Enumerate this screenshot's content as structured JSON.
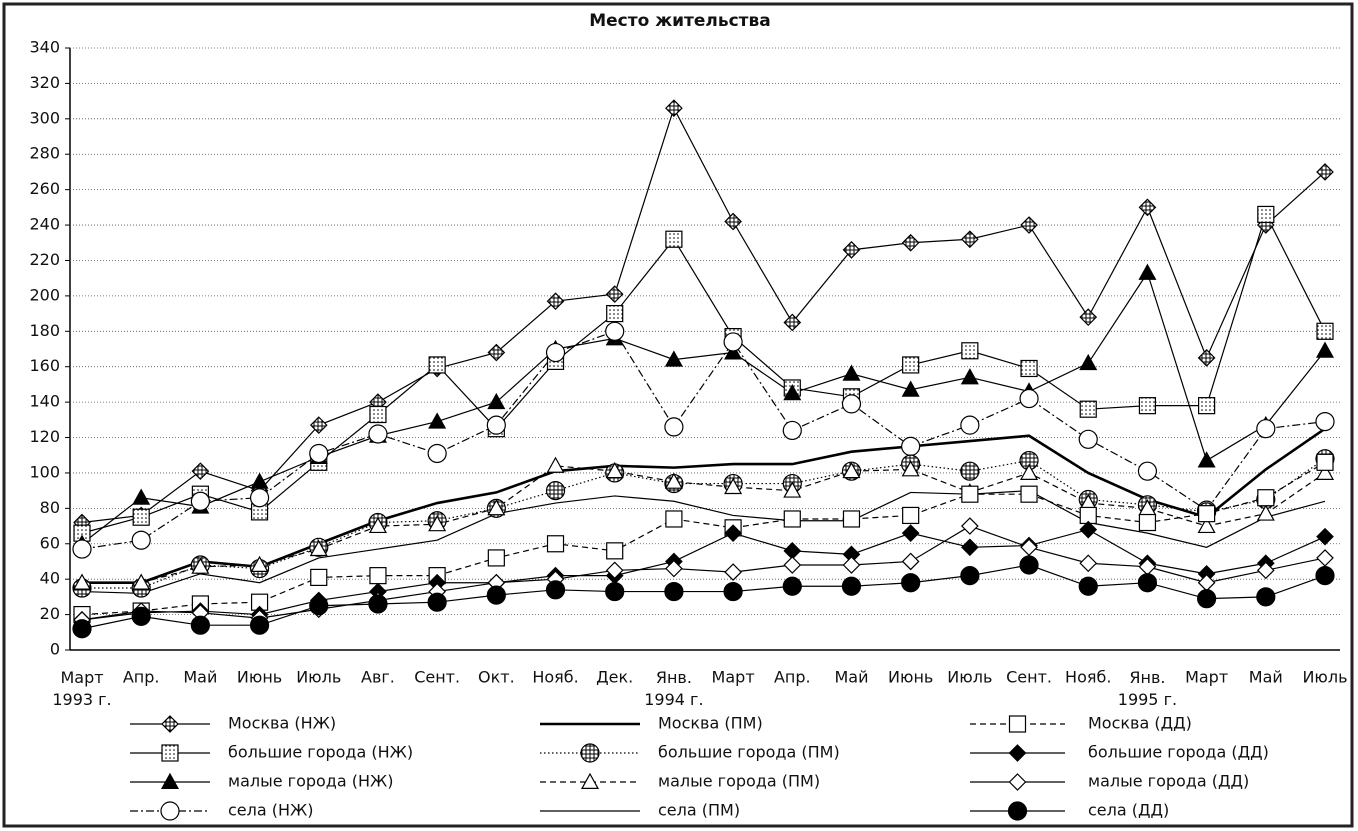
{
  "chart_data": {
    "type": "line",
    "title": "Место жительства",
    "categories": [
      "Март\n1993 г.",
      "Апр.",
      "Май",
      "Июнь",
      "Июль",
      "Авг.",
      "Сент.",
      "Окт.",
      "Нояб.",
      "Дек.",
      "Янв.\n1994 г.",
      "Март",
      "Апр.",
      "Май",
      "Июнь",
      "Июль",
      "Сент.",
      "Нояб.",
      "Янв.\n1995 г.",
      "Март",
      "Май",
      "Июль"
    ],
    "ylim": [
      0,
      340
    ],
    "yticks": [
      0,
      20,
      40,
      60,
      80,
      100,
      120,
      140,
      160,
      180,
      200,
      220,
      240,
      260,
      280,
      300,
      320,
      340
    ],
    "grid": true,
    "series": [
      {
        "name": "Москва (НЖ)",
        "color": "#000000",
        "marker": "diamond-cross",
        "line_style": "solid",
        "values": [
          72,
          76,
          101,
          90,
          127,
          140,
          159,
          168,
          197,
          201,
          306,
          242,
          185,
          226,
          230,
          232,
          240,
          188,
          250,
          165,
          240,
          270
        ]
      },
      {
        "name": "большие города (НЖ)",
        "color": "#000000",
        "marker": "square-dotted",
        "line_style": "solid",
        "values": [
          66,
          75,
          88,
          78,
          106,
          133,
          161,
          125,
          163,
          190,
          232,
          177,
          148,
          143,
          161,
          169,
          159,
          136,
          138,
          138,
          246,
          180
        ]
      },
      {
        "name": "малые города (НЖ)",
        "color": "#000000",
        "marker": "triangle-filled",
        "line_style": "solid",
        "values": [
          60,
          86,
          81,
          95,
          109,
          121,
          129,
          140,
          170,
          176,
          164,
          168,
          145,
          156,
          147,
          154,
          146,
          162,
          213,
          107,
          127,
          169
        ]
      },
      {
        "name": "села (НЖ)",
        "color": "#000000",
        "marker": "circle-open",
        "line_style": "dashdot",
        "values": [
          57,
          62,
          84,
          86,
          111,
          122,
          111,
          127,
          168,
          180,
          126,
          174,
          124,
          139,
          115,
          127,
          142,
          119,
          101,
          79,
          125,
          129
        ]
      },
      {
        "name": "Москва (ПМ)",
        "color": "#000000",
        "marker": "none",
        "line_style": "thick",
        "values": [
          38,
          38,
          50,
          47,
          60,
          73,
          83,
          89,
          101,
          104,
          103,
          105,
          105,
          112,
          115,
          118,
          121,
          100,
          85,
          75,
          102,
          125
        ]
      },
      {
        "name": "большие города (ПМ)",
        "color": "#000000",
        "marker": "circle-hatched",
        "line_style": "dotted",
        "values": [
          35,
          35,
          48,
          46,
          58,
          72,
          73,
          80,
          90,
          100,
          94,
          94,
          94,
          101,
          105,
          101,
          107,
          85,
          82,
          78,
          85,
          108
        ]
      },
      {
        "name": "малые города (ПМ)",
        "color": "#000000",
        "marker": "triangle-open",
        "line_style": "dashed",
        "values": [
          38,
          38,
          47,
          48,
          57,
          70,
          71,
          80,
          104,
          101,
          95,
          92,
          90,
          101,
          102,
          89,
          100,
          83,
          80,
          70,
          77,
          100
        ]
      },
      {
        "name": "села (ПМ)",
        "color": "#000000",
        "marker": "none",
        "line_style": "solid",
        "values": [
          33,
          32,
          43,
          38,
          52,
          57,
          62,
          77,
          83,
          87,
          84,
          76,
          73,
          73,
          89,
          88,
          90,
          72,
          66,
          58,
          75,
          84
        ]
      },
      {
        "name": "Москва (ДД)",
        "color": "#000000",
        "marker": "square-open",
        "line_style": "dashed",
        "values": [
          20,
          22,
          26,
          27,
          41,
          42,
          42,
          52,
          60,
          56,
          74,
          69,
          74,
          74,
          76,
          88,
          88,
          76,
          72,
          77,
          86,
          106
        ]
      },
      {
        "name": "большие города (ДД)",
        "color": "#000000",
        "marker": "diamond-filled",
        "line_style": "solid",
        "values": [
          17,
          21,
          22,
          20,
          28,
          33,
          38,
          38,
          42,
          42,
          50,
          66,
          56,
          54,
          66,
          58,
          59,
          68,
          49,
          43,
          49,
          64
        ]
      },
      {
        "name": "малые города (ДД)",
        "color": "#000000",
        "marker": "diamond-open",
        "line_style": "solid",
        "values": [
          17,
          22,
          21,
          18,
          23,
          28,
          33,
          38,
          40,
          45,
          46,
          44,
          48,
          48,
          50,
          70,
          58,
          49,
          47,
          38,
          45,
          52
        ]
      },
      {
        "name": "села (ДД)",
        "color": "#000000",
        "marker": "circle-filled",
        "line_style": "solid",
        "values": [
          12,
          19,
          14,
          14,
          25,
          26,
          27,
          31,
          34,
          33,
          33,
          33,
          36,
          36,
          38,
          42,
          48,
          36,
          38,
          29,
          30,
          42
        ]
      }
    ]
  }
}
